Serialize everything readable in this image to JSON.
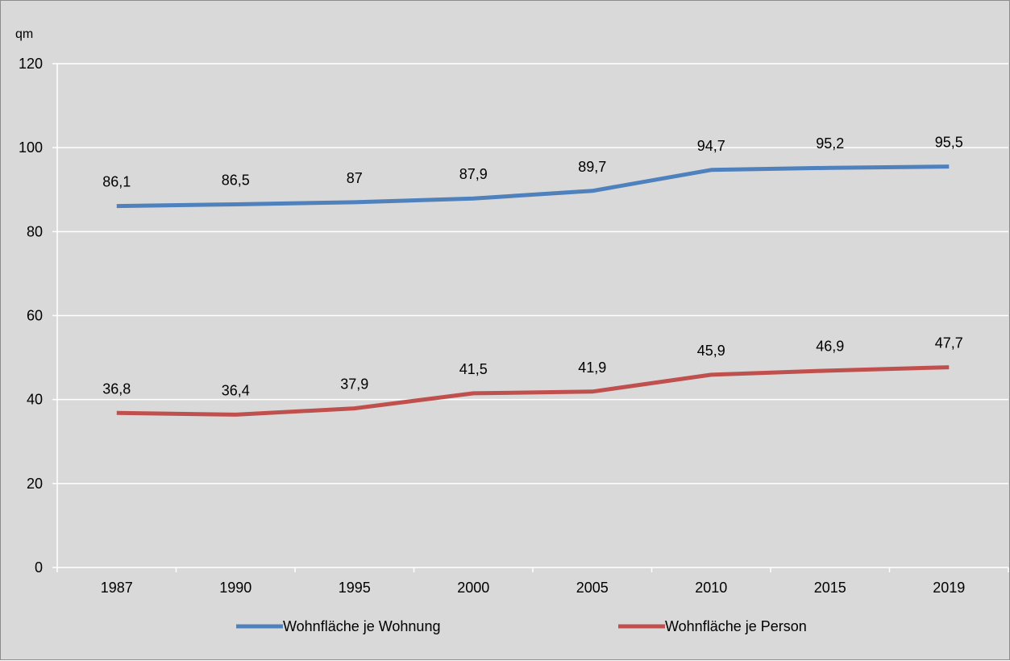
{
  "chart_data": {
    "type": "line",
    "title": "",
    "ylabel": "qm",
    "xlabel": "",
    "ylim": [
      0,
      120
    ],
    "yticks": [
      0,
      20,
      40,
      60,
      80,
      100,
      120
    ],
    "categories": [
      "1987",
      "1990",
      "1995",
      "2000",
      "2005",
      "2010",
      "2015",
      "2019"
    ],
    "grid": "horizontal",
    "legend_position": "bottom",
    "background_color": "#d9d9d9",
    "series": [
      {
        "name": "Wohnfläche je Wohnung",
        "color": "#4f81bd",
        "values": [
          86.1,
          86.5,
          87,
          87.9,
          89.7,
          94.7,
          95.2,
          95.5
        ],
        "labels": [
          "86,1",
          "86,5",
          "87",
          "87,9",
          "89,7",
          "94,7",
          "95,2",
          "95,5"
        ]
      },
      {
        "name": "Wohnfläche je Person",
        "color": "#c0504d",
        "values": [
          36.8,
          36.4,
          37.9,
          41.5,
          41.9,
          45.9,
          46.9,
          47.7
        ],
        "labels": [
          "36,8",
          "36,4",
          "37,9",
          "41,5",
          "41,9",
          "45,9",
          "46,9",
          "47,7"
        ]
      }
    ]
  }
}
